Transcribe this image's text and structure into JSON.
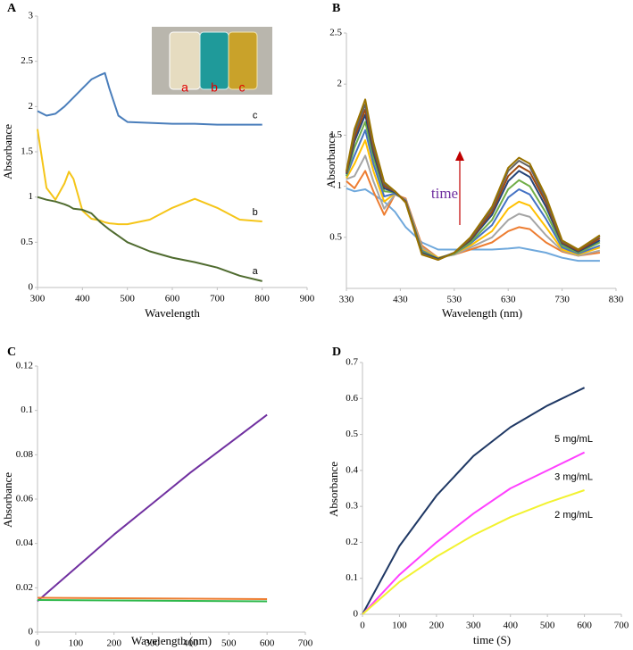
{
  "chart_data": [
    {
      "type": "line",
      "title": "A",
      "xlabel": "Wavelength",
      "ylabel": "Absorbance",
      "x": [
        300,
        320,
        340,
        360,
        370,
        380,
        400,
        420,
        440,
        450,
        460,
        480,
        500,
        550,
        600,
        650,
        700,
        750,
        800
      ],
      "xlim": [
        300,
        900
      ],
      "xticks": [
        300,
        400,
        500,
        600,
        700,
        800,
        900
      ],
      "ylim": [
        0,
        3
      ],
      "yticks": [
        0,
        0.5,
        1,
        1.5,
        2,
        2.5,
        3
      ],
      "series": [
        {
          "name": "c",
          "color": "#4a7ebb",
          "values": [
            1.95,
            1.9,
            1.92,
            2.0,
            2.05,
            2.1,
            2.2,
            2.3,
            2.35,
            2.37,
            2.2,
            1.9,
            1.83,
            1.82,
            1.81,
            1.81,
            1.8,
            1.8,
            1.8
          ]
        },
        {
          "name": "b",
          "color": "#f5c518",
          "values": [
            1.75,
            1.1,
            0.97,
            1.15,
            1.28,
            1.2,
            0.85,
            0.76,
            0.74,
            0.72,
            0.71,
            0.7,
            0.7,
            0.75,
            0.88,
            0.98,
            0.88,
            0.75,
            0.73
          ]
        },
        {
          "name": "a",
          "color": "#4f6b2f",
          "values": [
            1.0,
            0.97,
            0.95,
            0.92,
            0.9,
            0.87,
            0.86,
            0.82,
            0.72,
            0.68,
            0.64,
            0.57,
            0.5,
            0.4,
            0.33,
            0.28,
            0.22,
            0.13,
            0.07
          ]
        }
      ],
      "inset_labels": [
        "a",
        "b",
        "c"
      ]
    },
    {
      "type": "line",
      "title": "B",
      "xlabel": "Wavelength (nm)",
      "ylabel": "Absorbance",
      "x": [
        330,
        345,
        365,
        380,
        400,
        420,
        440,
        470,
        500,
        530,
        560,
        600,
        630,
        650,
        670,
        700,
        730,
        760,
        800
      ],
      "xlim": [
        330,
        830
      ],
      "xticks": [
        330,
        430,
        530,
        630,
        730,
        830
      ],
      "ylim": [
        0,
        2.5
      ],
      "yticks": [
        0.5,
        1,
        1.5,
        2,
        2.5
      ],
      "annotation": "time",
      "series": [
        {
          "color": "#6fa8dc",
          "values": [
            0.98,
            0.95,
            0.97,
            0.92,
            0.85,
            0.75,
            0.6,
            0.45,
            0.38,
            0.38,
            0.38,
            0.38,
            0.39,
            0.4,
            0.38,
            0.35,
            0.3,
            0.27,
            0.27
          ]
        },
        {
          "color": "#ed7d31",
          "values": [
            1.05,
            0.98,
            1.15,
            0.95,
            0.72,
            0.92,
            0.88,
            0.42,
            0.3,
            0.33,
            0.38,
            0.45,
            0.56,
            0.6,
            0.58,
            0.45,
            0.36,
            0.32,
            0.35
          ]
        },
        {
          "color": "#a5a5a5",
          "values": [
            1.07,
            1.1,
            1.3,
            1.05,
            0.78,
            0.92,
            0.87,
            0.4,
            0.3,
            0.33,
            0.4,
            0.5,
            0.67,
            0.73,
            0.7,
            0.52,
            0.37,
            0.32,
            0.37
          ]
        },
        {
          "color": "#ffc000",
          "values": [
            1.08,
            1.22,
            1.45,
            1.15,
            0.85,
            0.93,
            0.86,
            0.38,
            0.3,
            0.34,
            0.42,
            0.56,
            0.78,
            0.85,
            0.81,
            0.6,
            0.38,
            0.33,
            0.4
          ]
        },
        {
          "color": "#4472c4",
          "values": [
            1.1,
            1.3,
            1.55,
            1.22,
            0.9,
            0.93,
            0.86,
            0.37,
            0.29,
            0.34,
            0.44,
            0.62,
            0.89,
            0.97,
            0.92,
            0.68,
            0.4,
            0.34,
            0.42
          ]
        },
        {
          "color": "#70ad47",
          "values": [
            1.1,
            1.38,
            1.63,
            1.28,
            0.95,
            0.94,
            0.85,
            0.36,
            0.29,
            0.34,
            0.45,
            0.67,
            0.97,
            1.06,
            1.0,
            0.74,
            0.42,
            0.35,
            0.45
          ]
        },
        {
          "color": "#264478",
          "values": [
            1.12,
            1.44,
            1.7,
            1.33,
            0.98,
            0.94,
            0.85,
            0.35,
            0.29,
            0.35,
            0.47,
            0.72,
            1.05,
            1.15,
            1.09,
            0.8,
            0.44,
            0.36,
            0.47
          ]
        },
        {
          "color": "#9e480e",
          "values": [
            1.13,
            1.48,
            1.75,
            1.37,
            1.0,
            0.95,
            0.85,
            0.34,
            0.28,
            0.35,
            0.48,
            0.75,
            1.1,
            1.2,
            1.14,
            0.84,
            0.45,
            0.37,
            0.49
          ]
        },
        {
          "color": "#636363",
          "values": [
            1.14,
            1.52,
            1.8,
            1.4,
            1.02,
            0.95,
            0.84,
            0.34,
            0.28,
            0.35,
            0.49,
            0.78,
            1.15,
            1.25,
            1.19,
            0.87,
            0.46,
            0.38,
            0.51
          ]
        },
        {
          "color": "#997300",
          "values": [
            1.15,
            1.56,
            1.85,
            1.43,
            1.04,
            0.95,
            0.84,
            0.33,
            0.28,
            0.35,
            0.5,
            0.8,
            1.18,
            1.28,
            1.22,
            0.9,
            0.47,
            0.38,
            0.52
          ]
        }
      ]
    },
    {
      "type": "line",
      "title": "C",
      "xlabel": "Wavelength (nm)",
      "ylabel": "Absorbance",
      "x": [
        0,
        100,
        200,
        300,
        400,
        500,
        600
      ],
      "xlim": [
        0,
        700
      ],
      "xticks": [
        0,
        100,
        200,
        300,
        400,
        500,
        600,
        700
      ],
      "ylim": [
        0,
        0.12
      ],
      "yticks": [
        0,
        0.02,
        0.04,
        0.06,
        0.08,
        0.1,
        0.12
      ],
      "series": [
        {
          "color": "#7030a0",
          "values": [
            0.014,
            0.029,
            0.044,
            0.058,
            0.072,
            0.085,
            0.098
          ]
        },
        {
          "color": "#ed7d31",
          "values": [
            0.0155,
            0.0154,
            0.0153,
            0.0152,
            0.0151,
            0.015,
            0.0149
          ]
        },
        {
          "color": "#2eb84b",
          "values": [
            0.0145,
            0.0144,
            0.0143,
            0.0142,
            0.0141,
            0.014,
            0.0139
          ]
        }
      ]
    },
    {
      "type": "line",
      "title": "D",
      "xlabel": "time (S)",
      "ylabel": "Absorbance",
      "x": [
        0,
        100,
        200,
        300,
        400,
        500,
        600
      ],
      "xlim": [
        0,
        700
      ],
      "xticks": [
        0,
        100,
        200,
        300,
        400,
        500,
        600,
        700
      ],
      "ylim": [
        0,
        0.7
      ],
      "yticks": [
        0,
        0.1,
        0.2,
        0.3,
        0.4,
        0.5,
        0.6,
        0.7
      ],
      "series": [
        {
          "name": "5 mg/mL",
          "color": "#1f3864",
          "values": [
            0,
            0.19,
            0.33,
            0.44,
            0.52,
            0.58,
            0.63
          ]
        },
        {
          "name": "3 mg/mL",
          "color": "#ff40ff",
          "values": [
            0,
            0.11,
            0.2,
            0.28,
            0.35,
            0.4,
            0.45
          ]
        },
        {
          "name": "2 mg/mL",
          "color": "#f2f230",
          "values": [
            0,
            0.09,
            0.16,
            0.22,
            0.27,
            0.31,
            0.345
          ]
        }
      ]
    }
  ]
}
